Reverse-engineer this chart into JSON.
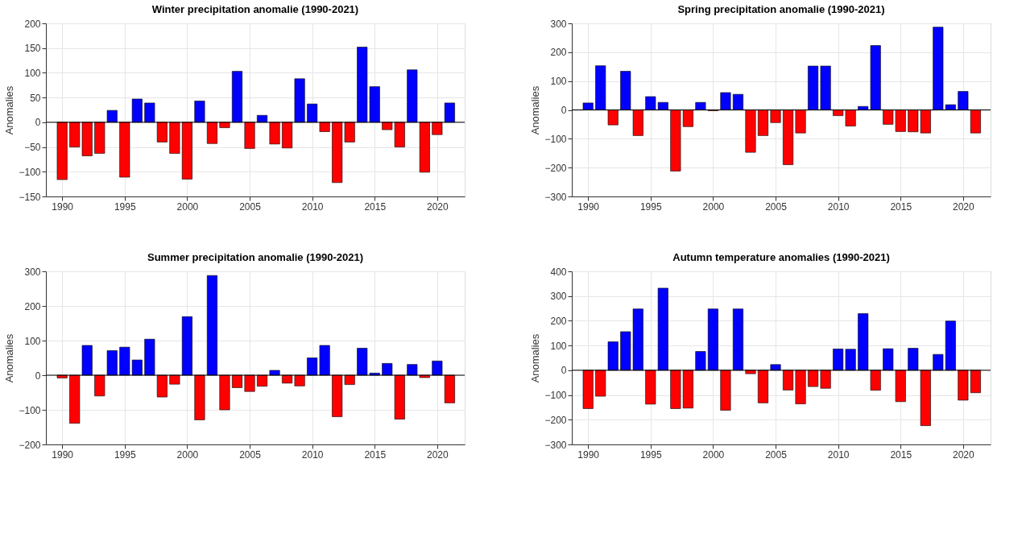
{
  "chart_data": [
    {
      "type": "bar",
      "title": "Winter precipitation anomalie (1990-2021)",
      "ylabel": "Anomalies",
      "x": [
        1990,
        1991,
        1992,
        1993,
        1994,
        1995,
        1996,
        1997,
        1998,
        1999,
        2000,
        2001,
        2002,
        2003,
        2004,
        2005,
        2006,
        2007,
        2008,
        2009,
        2010,
        2011,
        2012,
        2013,
        2014,
        2015,
        2016,
        2017,
        2018,
        2019,
        2020,
        2021
      ],
      "values": [
        -116,
        -50,
        -68,
        -63,
        24,
        -111,
        47,
        39,
        -40,
        -63,
        -115,
        43,
        -43,
        -11,
        103,
        -53,
        14,
        -44,
        -52,
        88,
        37,
        -19,
        -122,
        -40,
        152,
        72,
        -15,
        -50,
        106,
        -101,
        -25,
        39
      ],
      "colors": [
        "#ff0000",
        "#ff0000",
        "#ff0000",
        "#ff0000",
        "#0000ff",
        "#ff0000",
        "#0000ff",
        "#0000ff",
        "#ff0000",
        "#ff0000",
        "#ff0000",
        "#0000ff",
        "#ff0000",
        "#ff0000",
        "#0000ff",
        "#ff0000",
        "#0000ff",
        "#ff0000",
        "#ff0000",
        "#0000ff",
        "#0000ff",
        "#ff0000",
        "#ff0000",
        "#ff0000",
        "#0000ff",
        "#0000ff",
        "#ff0000",
        "#ff0000",
        "#0000ff",
        "#ff0000",
        "#ff0000",
        "#0000ff"
      ],
      "xlim": [
        1988.7,
        2022.2
      ],
      "xticks": [
        1990,
        1995,
        2000,
        2005,
        2010,
        2015,
        2020
      ],
      "ylim": [
        -150,
        200
      ],
      "yticks": [
        -150,
        -100,
        -50,
        0,
        50,
        100,
        150,
        200
      ],
      "grid": true,
      "ref_lines": [
        {
          "axis": "y",
          "value": 0,
          "color": "#000000"
        }
      ]
    },
    {
      "type": "bar",
      "title": "Spring precipitation anomalie (1990-2021)",
      "ylabel": "Anomalies",
      "x": [
        1990,
        1991,
        1992,
        1993,
        1994,
        1995,
        1996,
        1997,
        1998,
        1999,
        2000,
        2001,
        2002,
        2003,
        2004,
        2005,
        2006,
        2007,
        2008,
        2009,
        2010,
        2011,
        2012,
        2013,
        2014,
        2015,
        2016,
        2017,
        2018,
        2019,
        2020,
        2021
      ],
      "values": [
        24,
        153,
        -52,
        134,
        -89,
        46,
        26,
        -212,
        -58,
        26,
        -3,
        60,
        54,
        -147,
        -89,
        -44,
        -190,
        -80,
        152,
        152,
        -20,
        -56,
        12,
        223,
        -50,
        -75,
        -76,
        -80,
        287,
        18,
        64,
        -80
      ],
      "colors": [
        "#0000ff",
        "#0000ff",
        "#ff0000",
        "#0000ff",
        "#ff0000",
        "#0000ff",
        "#0000ff",
        "#ff0000",
        "#ff0000",
        "#0000ff",
        "#ff0000",
        "#0000ff",
        "#0000ff",
        "#ff0000",
        "#ff0000",
        "#ff0000",
        "#ff0000",
        "#ff0000",
        "#0000ff",
        "#0000ff",
        "#ff0000",
        "#ff0000",
        "#0000ff",
        "#0000ff",
        "#ff0000",
        "#ff0000",
        "#ff0000",
        "#ff0000",
        "#0000ff",
        "#0000ff",
        "#0000ff",
        "#ff0000"
      ],
      "xlim": [
        1988.7,
        2022.2
      ],
      "xticks": [
        1990,
        1995,
        2000,
        2005,
        2010,
        2015,
        2020
      ],
      "ylim": [
        -300,
        300
      ],
      "yticks": [
        -300,
        -200,
        -100,
        0,
        100,
        200,
        300
      ],
      "grid": true,
      "ref_lines": [
        {
          "axis": "y",
          "value": 0,
          "color": "#000000"
        }
      ]
    },
    {
      "type": "bar",
      "title": "Summer precipitation anomalie (1990-2021)",
      "ylabel": "Anomalies",
      "x": [
        1990,
        1991,
        1992,
        1993,
        1994,
        1995,
        1996,
        1997,
        1998,
        1999,
        2000,
        2001,
        2002,
        2003,
        2004,
        2005,
        2006,
        2007,
        2008,
        2009,
        2010,
        2011,
        2012,
        2013,
        2014,
        2015,
        2016,
        2017,
        2018,
        2019,
        2020,
        2021
      ],
      "values": [
        -8,
        -139,
        86,
        -60,
        71,
        81,
        44,
        104,
        -63,
        -26,
        169,
        -129,
        288,
        -100,
        -36,
        -47,
        -32,
        14,
        -23,
        -31,
        50,
        86,
        -120,
        -27,
        78,
        6,
        34,
        -127,
        31,
        -7,
        41,
        -80
      ],
      "colors": [
        "#ff0000",
        "#ff0000",
        "#0000ff",
        "#ff0000",
        "#0000ff",
        "#0000ff",
        "#0000ff",
        "#0000ff",
        "#ff0000",
        "#ff0000",
        "#0000ff",
        "#ff0000",
        "#0000ff",
        "#ff0000",
        "#ff0000",
        "#ff0000",
        "#ff0000",
        "#0000ff",
        "#ff0000",
        "#ff0000",
        "#0000ff",
        "#0000ff",
        "#ff0000",
        "#ff0000",
        "#0000ff",
        "#0000ff",
        "#0000ff",
        "#ff0000",
        "#0000ff",
        "#ff0000",
        "#0000ff",
        "#ff0000"
      ],
      "xlim": [
        1988.7,
        2022.2
      ],
      "xticks": [
        1990,
        1995,
        2000,
        2005,
        2010,
        2015,
        2020
      ],
      "ylim": [
        -200,
        300
      ],
      "yticks": [
        -200,
        -100,
        0,
        100,
        200,
        300
      ],
      "grid": true,
      "ref_lines": [
        {
          "axis": "y",
          "value": 0,
          "color": "#000000"
        }
      ]
    },
    {
      "type": "bar",
      "title": "Autumn temperature anomalies (1990-2021)",
      "ylabel": "Anomalies",
      "x": [
        1990,
        1991,
        1992,
        1993,
        1994,
        1995,
        1996,
        1997,
        1998,
        1999,
        2000,
        2001,
        2002,
        2003,
        2004,
        2005,
        2006,
        2007,
        2008,
        2009,
        2010,
        2011,
        2012,
        2013,
        2014,
        2015,
        2016,
        2017,
        2018,
        2019,
        2020,
        2021
      ],
      "values": [
        -155,
        -105,
        115,
        156,
        248,
        -137,
        332,
        -155,
        -153,
        76,
        248,
        -162,
        248,
        -14,
        -132,
        23,
        -80,
        -136,
        -66,
        -73,
        86,
        85,
        229,
        -81,
        87,
        -127,
        89,
        -224,
        64,
        199,
        -121,
        -91
      ],
      "colors": [
        "#ff0000",
        "#ff0000",
        "#0000ff",
        "#0000ff",
        "#0000ff",
        "#ff0000",
        "#0000ff",
        "#ff0000",
        "#ff0000",
        "#0000ff",
        "#0000ff",
        "#ff0000",
        "#0000ff",
        "#ff0000",
        "#ff0000",
        "#0000ff",
        "#ff0000",
        "#ff0000",
        "#ff0000",
        "#ff0000",
        "#0000ff",
        "#0000ff",
        "#0000ff",
        "#ff0000",
        "#0000ff",
        "#ff0000",
        "#0000ff",
        "#ff0000",
        "#0000ff",
        "#0000ff",
        "#ff0000",
        "#ff0000"
      ],
      "xlim": [
        1988.7,
        2022.2
      ],
      "xticks": [
        1990,
        1995,
        2000,
        2005,
        2010,
        2015,
        2020
      ],
      "ylim": [
        -300,
        400
      ],
      "yticks": [
        -300,
        -200,
        -100,
        0,
        100,
        200,
        300,
        400
      ],
      "grid": true,
      "ref_lines": [
        {
          "axis": "y",
          "value": 0,
          "color": "#000000"
        }
      ]
    }
  ]
}
